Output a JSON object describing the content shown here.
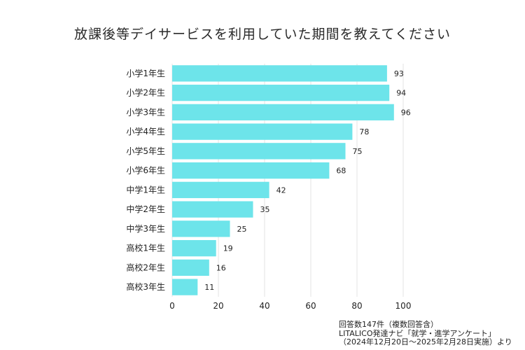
{
  "chart_data": {
    "type": "bar",
    "orientation": "horizontal",
    "title": "放課後等デイサービスを利用していた期間を教えてください",
    "categories": [
      "小学1年生",
      "小学2年生",
      "小学3年生",
      "小学4年生",
      "小学5年生",
      "小学6年生",
      "中学1年生",
      "中学2年生",
      "中学3年生",
      "高校1年生",
      "高校2年生",
      "高校3年生"
    ],
    "values": [
      93,
      94,
      96,
      78,
      75,
      68,
      42,
      35,
      25,
      19,
      16,
      11
    ],
    "xlim": [
      0,
      100
    ],
    "xticks": [
      0,
      20,
      40,
      60,
      80,
      100
    ],
    "xlabel": "",
    "ylabel": "",
    "grid": "vertical",
    "bar_color": "#6de4ea",
    "grid_color": "#e3e3e3"
  },
  "notes": [
    "回答数147件（複数回答含）",
    "LITALICO発達ナビ「就学・進学アンケート」",
    "（2024年12月20日～2025年2月28日実施）より"
  ]
}
